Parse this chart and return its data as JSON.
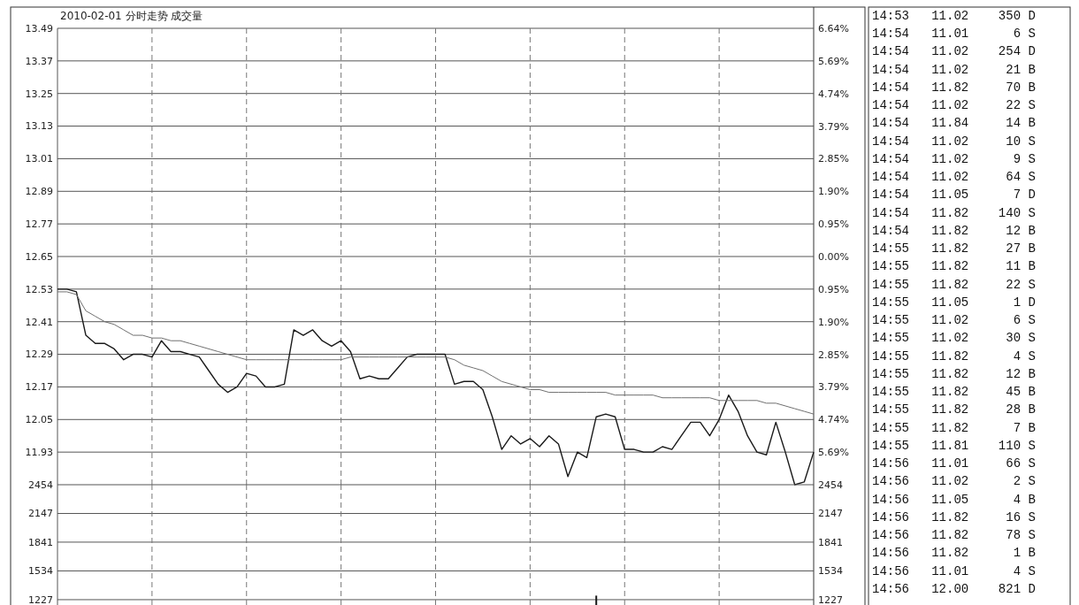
{
  "chart_data": [
    {
      "type": "line",
      "title": "2010-02-01 分时走势 成交量",
      "categories": [
        null,
        null,
        null,
        null,
        null,
        null,
        null,
        null,
        null,
        null,
        null,
        null,
        null,
        null,
        null,
        null,
        null,
        null,
        null,
        null,
        null,
        null,
        null,
        null,
        null,
        null,
        null,
        null,
        null,
        null,
        null,
        null,
        null,
        null,
        null,
        null,
        null,
        null,
        null,
        null,
        null,
        null,
        null,
        null,
        null,
        null,
        null,
        null,
        null,
        null,
        null,
        null,
        null,
        null,
        null,
        null,
        null,
        null,
        null,
        null,
        null,
        null,
        null,
        null,
        null,
        null,
        null,
        null,
        null,
        null,
        null,
        null,
        null,
        null,
        null,
        null,
        null,
        null,
        null,
        null,
        null
      ],
      "series": [
        {
          "color": "#1a1a1a",
          "values": [
            12.53,
            12.53,
            12.52,
            12.36,
            12.33,
            12.33,
            12.31,
            12.27,
            12.29,
            12.29,
            12.28,
            12.34,
            12.3,
            12.3,
            12.29,
            12.28,
            12.23,
            12.18,
            12.15,
            12.17,
            12.22,
            12.21,
            12.17,
            12.17,
            12.18,
            12.38,
            12.36,
            12.38,
            12.34,
            12.32,
            12.34,
            12.3,
            12.2,
            12.21,
            12.2,
            12.2,
            12.24,
            12.28,
            12.29,
            12.29,
            12.29,
            12.29,
            12.18,
            12.19,
            12.19,
            12.16,
            12.06,
            11.94,
            11.99,
            11.96,
            11.98,
            11.95,
            11.99,
            11.96,
            11.84,
            11.93,
            11.91,
            12.06,
            12.07,
            12.06,
            11.94,
            11.94,
            11.93,
            11.93,
            11.95,
            11.94,
            11.99,
            12.04,
            12.04,
            11.99,
            12.05,
            12.14,
            12.08,
            11.99,
            11.93,
            11.92,
            12.04,
            11.93,
            11.81,
            11.82,
            11.93
          ]
        },
        {
          "color": "#707070",
          "values": [
            12.52,
            12.52,
            12.51,
            12.45,
            12.43,
            12.41,
            12.4,
            12.38,
            12.36,
            12.36,
            12.35,
            12.35,
            12.34,
            12.34,
            12.33,
            12.32,
            12.31,
            12.3,
            12.29,
            12.28,
            12.27,
            12.27,
            12.27,
            12.27,
            12.27,
            12.27,
            12.27,
            12.27,
            12.27,
            12.27,
            12.27,
            12.28,
            12.28,
            12.28,
            12.28,
            12.28,
            12.28,
            12.28,
            12.28,
            12.28,
            12.28,
            12.28,
            12.27,
            12.25,
            12.24,
            12.23,
            12.21,
            12.19,
            12.18,
            12.17,
            12.16,
            12.16,
            12.15,
            12.15,
            12.15,
            12.15,
            12.15,
            12.15,
            12.15,
            12.14,
            12.14,
            12.14,
            12.14,
            12.14,
            12.13,
            12.13,
            12.13,
            12.13,
            12.13,
            12.13,
            12.12,
            12.12,
            12.12,
            12.12,
            12.12,
            12.11,
            12.11,
            12.1,
            12.09,
            12.08,
            12.07
          ]
        }
      ],
      "ylim": [
        11.81,
        13.49
      ],
      "yticks": [
        13.49,
        13.37,
        13.25,
        13.13,
        13.01,
        12.89,
        12.77,
        12.65,
        12.53,
        12.41,
        12.29,
        12.17,
        12.05,
        11.93
      ],
      "y2lim": [
        -6.64,
        6.64
      ],
      "y2ticks": [
        {
          "value": 6.64,
          "label": "6.64%"
        },
        {
          "value": 5.69,
          "label": "5.69%"
        },
        {
          "value": 4.74,
          "label": "4.74%"
        },
        {
          "value": 3.79,
          "label": "3.79%"
        },
        {
          "value": 2.85,
          "label": "2.85%"
        },
        {
          "value": 1.9,
          "label": "1.90%"
        },
        {
          "value": 0.95,
          "label": "0.95%"
        },
        {
          "value": 0,
          "label": "0.00%"
        },
        {
          "value": -0.95,
          "label": "0.95%"
        },
        {
          "value": -1.9,
          "label": "1.90%"
        },
        {
          "value": -2.85,
          "label": "2.85%"
        },
        {
          "value": -3.79,
          "label": "3.79%"
        },
        {
          "value": -4.74,
          "label": "4.74%"
        },
        {
          "value": -5.69,
          "label": "5.69%"
        }
      ],
      "grid": true
    },
    {
      "type": "bar",
      "categories": [
        null,
        null,
        null,
        null,
        null,
        null,
        null,
        null,
        null,
        null,
        null,
        null,
        null,
        null,
        null,
        null,
        null,
        null,
        null,
        null,
        null,
        null,
        null,
        null,
        null,
        null,
        null,
        null,
        null,
        null,
        null,
        null,
        null,
        null,
        null,
        null,
        null,
        null,
        null,
        null,
        null,
        null,
        null,
        null,
        null,
        null,
        null,
        null,
        null,
        null,
        null,
        null,
        null,
        null,
        null,
        null,
        null,
        null,
        null,
        null,
        null,
        null,
        null,
        null,
        null,
        null,
        null,
        null,
        null,
        null,
        null,
        null,
        null,
        null,
        null,
        null,
        null,
        null,
        null,
        null,
        null
      ],
      "values": [
        null,
        null,
        null,
        null,
        null,
        null,
        null,
        null,
        null,
        null,
        null,
        null,
        null,
        null,
        null,
        null,
        null,
        null,
        null,
        null,
        null,
        null,
        null,
        null,
        null,
        null,
        null,
        null,
        null,
        null,
        null,
        null,
        null,
        null,
        null,
        null,
        null,
        null,
        null,
        null,
        null,
        null,
        null,
        null,
        null,
        null,
        null,
        null,
        null,
        null,
        null,
        null,
        null,
        null,
        null,
        null,
        null,
        1270,
        null,
        null,
        null,
        null,
        null,
        null,
        null,
        null,
        null,
        null,
        null,
        null,
        null,
        null,
        null,
        null,
        null,
        null,
        null,
        null,
        null,
        null,
        null
      ],
      "color": "#1a1a1a",
      "ylim": [
        1170,
        2454
      ],
      "yticks": [
        2454,
        2147,
        1841,
        1534,
        1227
      ],
      "y2lim": [
        1170,
        2454
      ],
      "y2ticks": [
        2454,
        2147,
        1841,
        1534,
        1227
      ],
      "grid": true
    },
    {
      "type": "other",
      "annotations": [
        "14:53",
        "11.02",
        "350",
        "D",
        "14:54",
        "11.01",
        "6",
        "S",
        "14:54",
        "11.02",
        "254",
        "D",
        "14:54",
        "11.02",
        "21",
        "B",
        "14:54",
        "11.82",
        "70",
        "B",
        "14:54",
        "11.02",
        "22",
        "S",
        "14:54",
        "11.84",
        "14",
        "B",
        "14:54",
        "11.02",
        "10",
        "S",
        "14:54",
        "11.02",
        "9",
        "S",
        "14:54",
        "11.02",
        "64",
        "S",
        "14:54",
        "11.05",
        "7",
        "D",
        "14:54",
        "11.82",
        "140",
        "S",
        "14:54",
        "11.82",
        "12",
        "B",
        "14:55",
        "11.82",
        "27",
        "B",
        "14:55",
        "11.82",
        "11",
        "B",
        "14:55",
        "11.82",
        "22",
        "S",
        "14:55",
        "11.05",
        "1",
        "D",
        "14:55",
        "11.02",
        "6",
        "S",
        "14:55",
        "11.02",
        "30",
        "S",
        "14:55",
        "11.82",
        "4",
        "S",
        "14:55",
        "11.82",
        "12",
        "B",
        "14:55",
        "11.82",
        "45",
        "B",
        "14:55",
        "11.82",
        "28",
        "B",
        "14:55",
        "11.82",
        "7",
        "B",
        "14:55",
        "11.81",
        "110",
        "S",
        "14:56",
        "11.01",
        "66",
        "S",
        "14:56",
        "11.02",
        "2",
        "S",
        "14:56",
        "11.05",
        "4",
        "B",
        "14:56",
        "11.82",
        "16",
        "S",
        "14:56",
        "11.82",
        "78",
        "S",
        "14:56",
        "11.82",
        "1",
        "B",
        "14:56",
        "11.01",
        "4",
        "S",
        "14:56",
        "12.00",
        "821",
        "D"
      ]
    }
  ]
}
